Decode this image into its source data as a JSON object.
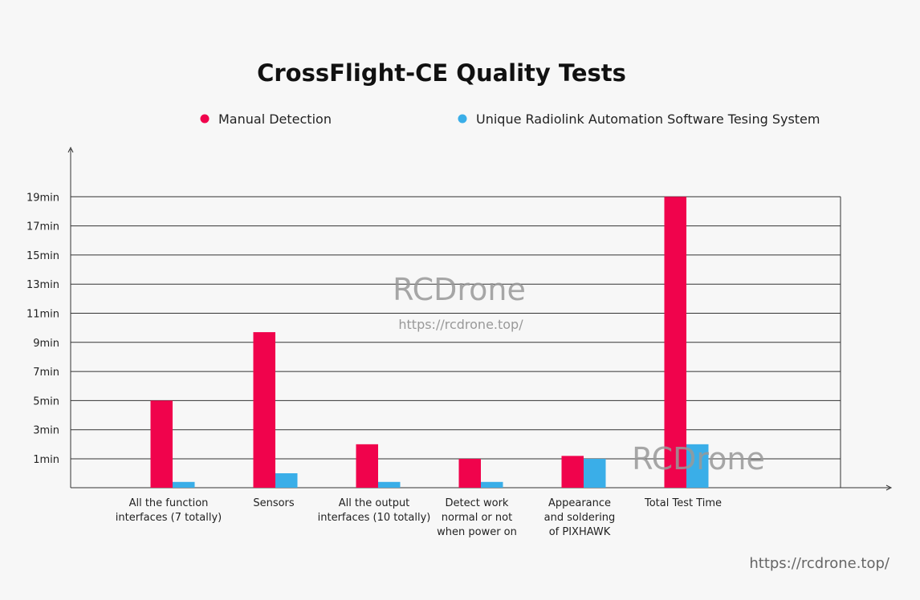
{
  "chart_data": {
    "type": "bar",
    "title": "CrossFlight-CE Quality Tests",
    "categories": [
      [
        "All the function",
        "interfaces (7 totally)"
      ],
      [
        "Sensors"
      ],
      [
        "All the output",
        "interfaces (10 totally)"
      ],
      [
        "Detect work",
        "normal or not",
        "when power on"
      ],
      [
        "Appearance",
        "and soldering",
        "of PIXHAWK"
      ],
      [
        "Total Test Time"
      ]
    ],
    "series": [
      {
        "name": "Manual Detection",
        "color": "#f0034c",
        "values": [
          5,
          9.7,
          2,
          1,
          1.2,
          19
        ]
      },
      {
        "name": "Unique Radiolink Automation Software Tesing System",
        "color": "#3aaee8",
        "values": [
          0.2,
          0.5,
          0.2,
          0.2,
          1,
          2
        ]
      }
    ],
    "yticks": [
      1,
      3,
      5,
      7,
      9,
      11,
      13,
      15,
      17,
      19
    ],
    "ytick_labels": [
      "1min",
      "3min",
      "5min",
      "7min",
      "9min",
      "11min",
      "13min",
      "15min",
      "17min",
      "19min"
    ],
    "ylim": [
      0,
      19
    ],
    "grid": true,
    "legend_position": "top"
  },
  "watermarks": {
    "brand": "RCDrone",
    "url": "https://rcdrone.top/"
  }
}
